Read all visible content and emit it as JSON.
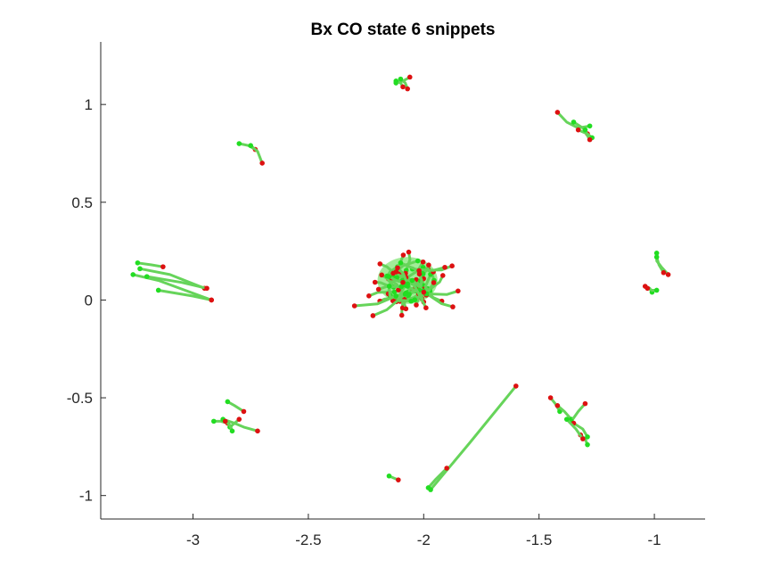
{
  "chart_data": {
    "type": "scatter",
    "title": "Bx  CO state 6 snippets",
    "xlabel": "",
    "ylabel": "",
    "xlim": [
      -3.4,
      -0.78
    ],
    "ylim": [
      -1.12,
      1.32
    ],
    "xticks": [
      -3,
      -2.5,
      -2,
      -1.5,
      -1
    ],
    "yticks": [
      -1,
      -0.5,
      0,
      0.5,
      1
    ],
    "xtick_labels": [
      "-3",
      "-2.5",
      "-2",
      "-1.5",
      "-1"
    ],
    "ytick_labels": [
      "-1",
      "-0.5",
      "0",
      "0.5",
      "1"
    ],
    "grid": false,
    "colors": {
      "trajectory": "#66d45a",
      "start_marker": "#22dd22",
      "end_marker": "#dd1111",
      "axis": "#262626"
    },
    "snippets": [
      {
        "points": [
          [
            -2.8,
            0.8
          ],
          [
            -2.76,
            0.79
          ],
          [
            -2.73,
            0.77
          ]
        ]
      },
      {
        "points": [
          [
            -2.75,
            0.79
          ],
          [
            -2.72,
            0.76
          ],
          [
            -2.7,
            0.7
          ]
        ]
      },
      {
        "points": [
          [
            -2.12,
            1.11
          ],
          [
            -2.09,
            1.12
          ],
          [
            -2.06,
            1.14
          ]
        ]
      },
      {
        "points": [
          [
            -2.1,
            1.13
          ],
          [
            -2.08,
            1.11
          ],
          [
            -2.07,
            1.08
          ]
        ]
      },
      {
        "points": [
          [
            -2.12,
            1.12
          ],
          [
            -2.1,
            1.11
          ],
          [
            -2.09,
            1.09
          ]
        ]
      },
      {
        "points": [
          [
            -1.28,
            0.89
          ],
          [
            -1.33,
            0.88
          ],
          [
            -1.38,
            0.91
          ],
          [
            -1.42,
            0.96
          ]
        ]
      },
      {
        "points": [
          [
            -1.35,
            0.91
          ],
          [
            -1.31,
            0.88
          ],
          [
            -1.29,
            0.85
          ]
        ]
      },
      {
        "points": [
          [
            -1.27,
            0.83
          ],
          [
            -1.29,
            0.85
          ],
          [
            -1.33,
            0.87
          ]
        ]
      },
      {
        "points": [
          [
            -1.3,
            0.87
          ],
          [
            -1.29,
            0.84
          ],
          [
            -1.28,
            0.82
          ]
        ]
      },
      {
        "points": [
          [
            -3.24,
            0.19
          ],
          [
            -3.18,
            0.18
          ],
          [
            -3.13,
            0.17
          ]
        ]
      },
      {
        "points": [
          [
            -3.23,
            0.16
          ],
          [
            -3.1,
            0.13
          ],
          [
            -2.95,
            0.06
          ]
        ]
      },
      {
        "points": [
          [
            -3.26,
            0.13
          ],
          [
            -3.15,
            0.1
          ],
          [
            -2.92,
            0.0
          ]
        ]
      },
      {
        "points": [
          [
            -3.2,
            0.12
          ],
          [
            -3.05,
            0.09
          ],
          [
            -2.94,
            0.06
          ]
        ]
      },
      {
        "points": [
          [
            -3.15,
            0.05
          ],
          [
            -3.0,
            0.02
          ],
          [
            -2.92,
            0.0
          ]
        ]
      },
      {
        "points": [
          [
            -0.99,
            0.24
          ],
          [
            -0.99,
            0.2
          ],
          [
            -0.97,
            0.17
          ],
          [
            -0.94,
            0.13
          ]
        ]
      },
      {
        "points": [
          [
            -0.99,
            0.22
          ],
          [
            -0.98,
            0.18
          ],
          [
            -0.96,
            0.14
          ]
        ]
      },
      {
        "points": [
          [
            -1.01,
            0.04
          ],
          [
            -1.02,
            0.06
          ],
          [
            -1.04,
            0.07
          ]
        ]
      },
      {
        "points": [
          [
            -0.99,
            0.05
          ],
          [
            -1.01,
            0.05
          ],
          [
            -1.03,
            0.06
          ]
        ]
      },
      {
        "points": [
          [
            -2.1,
            0.19
          ],
          [
            -2.06,
            0.17
          ],
          [
            -2.02,
            0.15
          ]
        ]
      },
      {
        "points": [
          [
            -2.07,
            0.07
          ],
          [
            -2.04,
            0.05
          ],
          [
            -2.0,
            0.04
          ]
        ]
      },
      {
        "points": [
          [
            -2.15,
            0.12
          ],
          [
            -2.12,
            0.1
          ],
          [
            -2.09,
            0.09
          ]
        ]
      },
      {
        "points": [
          [
            -2.02,
            0.05
          ],
          [
            -2.01,
            0.02
          ],
          [
            -2.0,
            -0.01
          ]
        ]
      },
      {
        "points": [
          [
            -2.12,
            0.02
          ],
          [
            -2.2,
            -0.02
          ],
          [
            -2.3,
            -0.03
          ]
        ]
      },
      {
        "points": [
          [
            -2.08,
            0.03
          ],
          [
            -2.16,
            -0.05
          ],
          [
            -2.22,
            -0.08
          ]
        ]
      },
      {
        "points": [
          [
            -2.05,
            0.1
          ],
          [
            -2.03,
            0.05
          ],
          [
            -1.99,
            -0.04
          ]
        ]
      },
      {
        "points": [
          [
            -2.91,
            -0.62
          ],
          [
            -2.88,
            -0.62
          ],
          [
            -2.85,
            -0.63
          ]
        ]
      },
      {
        "points": [
          [
            -2.87,
            -0.61
          ],
          [
            -2.82,
            -0.63
          ],
          [
            -2.78,
            -0.65
          ],
          [
            -2.72,
            -0.67
          ]
        ]
      },
      {
        "points": [
          [
            -2.85,
            -0.52
          ],
          [
            -2.82,
            -0.54
          ],
          [
            -2.78,
            -0.57
          ]
        ]
      },
      {
        "points": [
          [
            -2.84,
            -0.65
          ],
          [
            -2.82,
            -0.63
          ],
          [
            -2.8,
            -0.61
          ]
        ]
      },
      {
        "points": [
          [
            -2.83,
            -0.67
          ],
          [
            -2.84,
            -0.64
          ],
          [
            -2.86,
            -0.62
          ]
        ]
      },
      {
        "points": [
          [
            -1.97,
            -0.97
          ],
          [
            -1.8,
            -0.73
          ],
          [
            -1.6,
            -0.44
          ]
        ]
      },
      {
        "points": [
          [
            -1.98,
            -0.96
          ],
          [
            -1.95,
            -0.92
          ],
          [
            -1.9,
            -0.86
          ]
        ]
      },
      {
        "points": [
          [
            -2.15,
            -0.9
          ],
          [
            -2.13,
            -0.91
          ],
          [
            -2.11,
            -0.92
          ]
        ]
      },
      {
        "points": [
          [
            -1.41,
            -0.57
          ],
          [
            -1.43,
            -0.53
          ],
          [
            -1.45,
            -0.5
          ]
        ]
      },
      {
        "points": [
          [
            -1.36,
            -0.61
          ],
          [
            -1.39,
            -0.57
          ],
          [
            -1.42,
            -0.54
          ]
        ]
      },
      {
        "points": [
          [
            -1.36,
            -0.62
          ],
          [
            -1.33,
            -0.57
          ],
          [
            -1.3,
            -0.53
          ]
        ]
      },
      {
        "points": [
          [
            -1.29,
            -0.74
          ],
          [
            -1.3,
            -0.71
          ],
          [
            -1.32,
            -0.69
          ]
        ]
      },
      {
        "points": [
          [
            -1.29,
            -0.7
          ],
          [
            -1.31,
            -0.66
          ],
          [
            -1.35,
            -0.63
          ]
        ]
      },
      {
        "points": [
          [
            -1.38,
            -0.61
          ],
          [
            -1.34,
            -0.66
          ],
          [
            -1.31,
            -0.71
          ]
        ]
      }
    ]
  }
}
